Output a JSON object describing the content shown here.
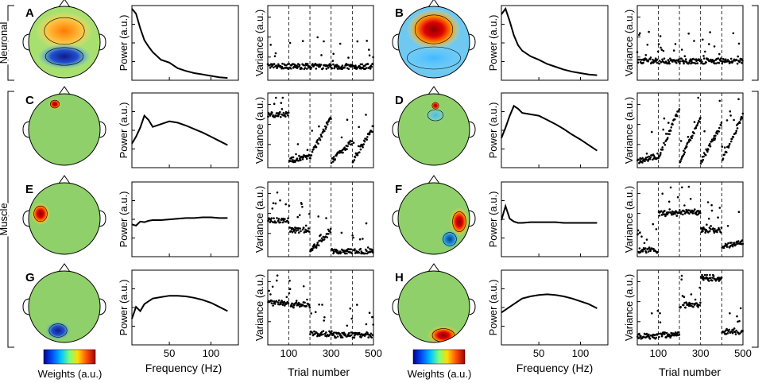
{
  "groups": {
    "neuronal": "Neuronal",
    "muscle": "Muscle"
  },
  "axis_labels": {
    "power": "Power (a.u.)",
    "variance": "Variance (a.u.)",
    "frequency": "Frequency (Hz)",
    "trial": "Trial number",
    "weights": "Weights (a.u.)"
  },
  "freq_ticks": [
    "50",
    "100"
  ],
  "trial_ticks": [
    "100",
    "300",
    "500"
  ],
  "colorbar": [
    "#00008f",
    "#0050ff",
    "#00c8ff",
    "#7dff7d",
    "#ffdc00",
    "#ff5000",
    "#a00000"
  ],
  "chart_data": [
    {
      "panel": "A",
      "type": "line",
      "group": "Neuronal",
      "topo": "frontal-positive, posterior-negative",
      "spectrum": {
        "x": [
          5,
          10,
          15,
          20,
          25,
          30,
          40,
          50,
          60,
          70,
          80,
          90,
          100,
          110,
          120
        ],
        "y": [
          1.0,
          0.93,
          0.72,
          0.55,
          0.46,
          0.38,
          0.27,
          0.23,
          0.15,
          0.11,
          0.08,
          0.06,
          0.04,
          0.02,
          0.01
        ],
        "xlabel": "Frequency (Hz)",
        "ylabel": "Power (a.u.)"
      },
      "variance": {
        "type": "scatter",
        "ylabel": "Variance (a.u.)",
        "xlabel": "Trial number",
        "xlim": [
          1,
          500
        ],
        "block_boundaries": [
          100,
          200,
          300,
          400
        ],
        "seg_base": [
          0.16,
          0.16,
          0.16,
          0.16,
          0.16
        ],
        "seg_slope": [
          0,
          0,
          0,
          0,
          0
        ]
      }
    },
    {
      "panel": "B",
      "type": "line",
      "group": "Neuronal",
      "topo": "frontal-central positive peak",
      "spectrum": {
        "x": [
          5,
          10,
          15,
          20,
          25,
          30,
          40,
          50,
          60,
          70,
          80,
          90,
          100,
          110,
          120
        ],
        "y": [
          0.92,
          1.0,
          0.82,
          0.62,
          0.48,
          0.4,
          0.32,
          0.27,
          0.21,
          0.17,
          0.13,
          0.1,
          0.08,
          0.06,
          0.05
        ],
        "xlabel": "Frequency (Hz)",
        "ylabel": "Power (a.u.)"
      },
      "variance": {
        "type": "scatter",
        "ylabel": "Variance (a.u.)",
        "xlabel": "Trial number",
        "xlim": [
          1,
          500
        ],
        "block_boundaries": [
          100,
          200,
          300,
          400
        ],
        "seg_base": [
          0.24,
          0.24,
          0.24,
          0.24,
          0.24
        ],
        "seg_slope": [
          0,
          0,
          0,
          0,
          0
        ]
      }
    },
    {
      "panel": "C",
      "type": "line",
      "group": "Muscle",
      "topo": "frontal focal",
      "spectrum": {
        "x": [
          5,
          10,
          15,
          20,
          25,
          30,
          40,
          50,
          60,
          70,
          80,
          90,
          100,
          110,
          120
        ],
        "y": [
          0.32,
          0.42,
          0.55,
          0.72,
          0.66,
          0.56,
          0.6,
          0.64,
          0.62,
          0.58,
          0.53,
          0.48,
          0.42,
          0.36,
          0.3
        ],
        "xlabel": "Frequency (Hz)",
        "ylabel": "Power (a.u.)"
      },
      "variance": {
        "type": "scatter",
        "ylabel": "Variance (a.u.)",
        "xlabel": "Trial number",
        "xlim": [
          1,
          500
        ],
        "block_boundaries": [
          100,
          200,
          300,
          400
        ],
        "seg_base": [
          0.75,
          0.06,
          0.12,
          0.05,
          0.06
        ],
        "seg_slope": [
          0,
          0.05,
          0.6,
          0.3,
          0.5
        ]
      }
    },
    {
      "panel": "D",
      "type": "line",
      "group": "Muscle",
      "topo": "frontal focal",
      "spectrum": {
        "x": [
          5,
          10,
          15,
          20,
          25,
          30,
          40,
          50,
          60,
          70,
          80,
          90,
          100,
          110,
          120
        ],
        "y": [
          0.4,
          0.55,
          0.72,
          0.86,
          0.82,
          0.76,
          0.74,
          0.72,
          0.66,
          0.6,
          0.53,
          0.45,
          0.38,
          0.3,
          0.22
        ],
        "xlabel": "Frequency (Hz)",
        "ylabel": "Power (a.u.)"
      },
      "variance": {
        "type": "scatter",
        "ylabel": "Variance (a.u.)",
        "xlabel": "Trial number",
        "xlim": [
          1,
          500
        ],
        "block_boundaries": [
          100,
          200,
          300,
          400
        ],
        "seg_base": [
          0.05,
          0.1,
          0.06,
          0.05,
          0.06
        ],
        "seg_slope": [
          0.08,
          0.75,
          0.65,
          0.55,
          0.7
        ]
      }
    },
    {
      "panel": "E",
      "type": "line",
      "group": "Muscle",
      "topo": "left temporal",
      "spectrum": {
        "x": [
          5,
          10,
          15,
          20,
          25,
          30,
          40,
          50,
          60,
          70,
          80,
          90,
          100,
          110,
          120
        ],
        "y": [
          0.44,
          0.42,
          0.48,
          0.47,
          0.49,
          0.5,
          0.5,
          0.51,
          0.52,
          0.53,
          0.53,
          0.54,
          0.54,
          0.53,
          0.53
        ],
        "xlabel": "Frequency (Hz)",
        "ylabel": "Power (a.u.)"
      },
      "variance": {
        "type": "scatter",
        "ylabel": "Variance (a.u.)",
        "xlabel": "Trial number",
        "xlim": [
          1,
          500
        ],
        "block_boundaries": [
          100,
          200,
          300,
          400
        ],
        "seg_base": [
          0.5,
          0.35,
          0.04,
          0.03,
          0.03
        ],
        "seg_slope": [
          0,
          0,
          0.3,
          0,
          0
        ]
      }
    },
    {
      "panel": "F",
      "type": "line",
      "group": "Muscle",
      "topo": "right temporal",
      "spectrum": {
        "x": [
          5,
          10,
          15,
          20,
          25,
          30,
          40,
          50,
          60,
          70,
          80,
          90,
          100,
          110,
          120
        ],
        "y": [
          0.5,
          0.7,
          0.52,
          0.48,
          0.46,
          0.46,
          0.47,
          0.47,
          0.47,
          0.47,
          0.46,
          0.46,
          0.46,
          0.46,
          0.46
        ],
        "xlabel": "Frequency (Hz)",
        "ylabel": "Power (a.u.)"
      },
      "variance": {
        "type": "scatter",
        "ylabel": "Variance (a.u.)",
        "xlabel": "Trial number",
        "xlim": [
          1,
          500
        ],
        "block_boundaries": [
          100,
          200,
          300,
          400
        ],
        "seg_base": [
          0.05,
          0.6,
          0.62,
          0.35,
          0.1
        ],
        "seg_slope": [
          0,
          0,
          0,
          0,
          0.08
        ]
      }
    },
    {
      "panel": "G",
      "type": "line",
      "group": "Muscle",
      "topo": "posterior (occipital)",
      "spectrum": {
        "x": [
          5,
          10,
          15,
          20,
          25,
          30,
          40,
          50,
          60,
          70,
          80,
          90,
          100,
          110,
          120
        ],
        "y": [
          0.35,
          0.52,
          0.46,
          0.56,
          0.6,
          0.64,
          0.66,
          0.68,
          0.68,
          0.67,
          0.65,
          0.62,
          0.58,
          0.52,
          0.46
        ],
        "xlabel": "Frequency (Hz)",
        "ylabel": "Power (a.u.)"
      },
      "variance": {
        "type": "scatter",
        "ylabel": "Variance (a.u.)",
        "xlabel": "Trial number",
        "xlim": [
          1,
          500
        ],
        "block_boundaries": [
          100,
          200,
          300,
          400
        ],
        "seg_base": [
          0.58,
          0.55,
          0.12,
          0.1,
          0.1
        ],
        "seg_slope": [
          0,
          0,
          0,
          0,
          0
        ]
      }
    },
    {
      "panel": "H",
      "type": "line",
      "group": "Muscle",
      "topo": "posterior right",
      "spectrum": {
        "x": [
          5,
          10,
          15,
          20,
          25,
          30,
          40,
          50,
          60,
          70,
          80,
          90,
          100,
          110,
          120
        ],
        "y": [
          0.44,
          0.48,
          0.52,
          0.56,
          0.6,
          0.64,
          0.67,
          0.69,
          0.7,
          0.69,
          0.67,
          0.64,
          0.6,
          0.56,
          0.5
        ],
        "xlabel": "Frequency (Hz)",
        "ylabel": "Power (a.u.)"
      },
      "variance": {
        "type": "scatter",
        "ylabel": "Variance (a.u.)",
        "xlabel": "Trial number",
        "xlim": [
          1,
          500
        ],
        "block_boundaries": [
          100,
          200,
          300,
          400
        ],
        "seg_base": [
          0.08,
          0.1,
          0.55,
          0.95,
          0.15
        ],
        "seg_slope": [
          0,
          0,
          0,
          0,
          0
        ]
      }
    }
  ]
}
